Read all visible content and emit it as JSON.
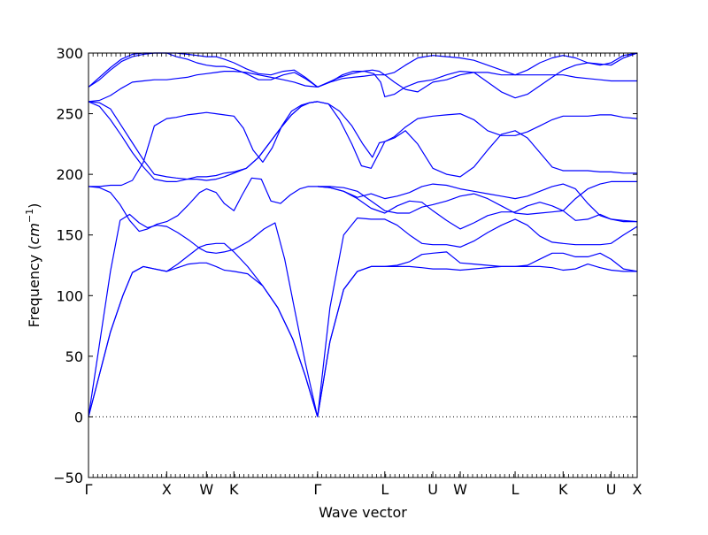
{
  "chart_data": {
    "type": "line",
    "title": "",
    "xlabel": "Wave vector",
    "ylabel_text": "Frequency (",
    "ylabel_unit_base": "cm",
    "ylabel_unit_exp": "−1",
    "ylabel_close": ")",
    "ylim": [
      -50,
      300
    ],
    "yticks": [
      -50,
      0,
      50,
      100,
      150,
      200,
      250,
      300
    ],
    "xlim": [
      0,
      40.0
    ],
    "grid": false,
    "legend": "none",
    "line_color": "#0000ff",
    "zero_line": {
      "y": 0,
      "style": "dotted",
      "color": "#000000"
    },
    "high_symmetry_points": [
      {
        "label": "Γ",
        "x": 0.0
      },
      {
        "label": "X",
        "x": 5.7
      },
      {
        "label": "W",
        "x": 8.6
      },
      {
        "label": "K",
        "x": 10.6
      },
      {
        "label": "Γ",
        "x": 16.7
      },
      {
        "label": "L",
        "x": 21.6
      },
      {
        "label": "U",
        "x": 25.1
      },
      {
        "label": "W",
        "x": 27.1
      },
      {
        "label": "L",
        "x": 31.1
      },
      {
        "label": "K",
        "x": 34.6
      },
      {
        "label": "U",
        "x": 38.1
      },
      {
        "label": "X",
        "x": 40.0
      }
    ],
    "series": [
      {
        "x": [
          0,
          0.8,
          1.6,
          2.5,
          3.2,
          4.0,
          4.8,
          5.7,
          6.5,
          7.3,
          8.1,
          8.6,
          9.3,
          9.9,
          10.6,
          11.6,
          12.7,
          13.8,
          14.9,
          15.8,
          16.7
        ],
        "y": [
          0,
          35,
          70,
          100,
          119,
          124,
          122,
          120,
          123,
          126,
          127,
          127,
          124,
          121,
          120,
          118,
          108,
          90,
          64,
          34,
          0
        ]
      },
      {
        "x": [
          0,
          0.8,
          1.6,
          2.5,
          3.2,
          4.0,
          4.8,
          5.7,
          6.5,
          7.3,
          8.1,
          8.6,
          9.3,
          9.9,
          10.6,
          11.6,
          12.7,
          13.8,
          14.9,
          15.8,
          16.7
        ],
        "y": [
          0,
          35,
          70,
          100,
          119,
          124,
          122,
          120,
          126,
          133,
          140,
          142,
          143,
          143,
          136,
          124,
          108,
          90,
          64,
          34,
          0
        ]
      },
      {
        "x": [
          0,
          0.8,
          1.6,
          2.3,
          3.0,
          3.7,
          4.3,
          5.0,
          5.7,
          6.5,
          7.3,
          8.1,
          8.6,
          9.3,
          9.9,
          10.6,
          11.7,
          12.8,
          13.6,
          14.3,
          15.0,
          15.8,
          16.7
        ],
        "y": [
          0,
          60,
          120,
          162,
          167,
          160,
          156,
          158,
          157,
          152,
          146,
          139,
          136,
          135,
          136,
          138,
          145,
          155,
          160,
          130,
          90,
          45,
          0
        ]
      },
      {
        "x": [
          0,
          0.8,
          1.6,
          2.3,
          3.0,
          3.7,
          4.3,
          5.0,
          5.7,
          6.5,
          7.3,
          8.1,
          8.6,
          9.3,
          9.9,
          10.6,
          11.2,
          11.9,
          12.6,
          13.3,
          14.0,
          14.7,
          15.4,
          16.0,
          16.7
        ],
        "y": [
          190,
          189,
          185,
          175,
          162,
          153,
          155,
          159,
          161,
          166,
          175,
          185,
          188,
          185,
          176,
          170,
          183,
          197,
          196,
          178,
          176,
          183,
          188,
          190,
          190
        ]
      },
      {
        "x": [
          0,
          0.8,
          1.6,
          2.4,
          3.2,
          4.0,
          4.8,
          5.7,
          6.4,
          7.2,
          7.9,
          8.6,
          9.3,
          9.9,
          10.6,
          11.3,
          12.0,
          12.7,
          13.4,
          14.1,
          14.8,
          15.5,
          16.1,
          16.7
        ],
        "y": [
          190,
          190,
          191,
          191,
          195,
          210,
          240,
          246,
          247,
          249,
          250,
          251,
          250,
          249,
          248,
          238,
          220,
          210,
          222,
          240,
          252,
          257,
          259,
          260
        ]
      },
      {
        "x": [
          0,
          0.8,
          1.6,
          2.4,
          3.2,
          4.0,
          4.8,
          5.7,
          6.4,
          7.2,
          7.9,
          8.6,
          9.3,
          9.9,
          10.6,
          11.5,
          12.4,
          13.2,
          14.0,
          14.8,
          15.5,
          16.1,
          16.7
        ],
        "y": [
          260,
          259,
          254,
          240,
          226,
          212,
          200,
          198,
          197,
          196,
          196,
          195,
          196,
          198,
          201,
          205,
          214,
          226,
          238,
          249,
          256,
          259,
          260
        ]
      },
      {
        "x": [
          0,
          0.8,
          1.6,
          2.4,
          3.2,
          4.0,
          4.8,
          5.7,
          6.4,
          7.2,
          7.9,
          8.6,
          9.3,
          9.9,
          10.6,
          11.5,
          12.4,
          13.2,
          14.0,
          14.8,
          15.5,
          16.1,
          16.7
        ],
        "y": [
          260,
          256,
          245,
          232,
          218,
          206,
          196,
          194,
          194,
          196,
          198,
          198,
          199,
          201,
          202,
          205,
          214,
          226,
          238,
          249,
          256,
          259,
          260
        ]
      },
      {
        "x": [
          0,
          0.8,
          1.6,
          2.4,
          3.2,
          4.0,
          4.8,
          5.7,
          6.4,
          7.2,
          7.9,
          8.6,
          9.3,
          9.9,
          10.6,
          11.5,
          12.4,
          13.3,
          14.2,
          15.0,
          15.8,
          16.7
        ],
        "y": [
          260,
          261,
          265,
          271,
          276,
          277,
          278,
          278,
          279,
          280,
          282,
          283,
          284,
          285,
          285,
          284,
          282,
          280,
          278,
          276,
          273,
          272
        ]
      },
      {
        "x": [
          0,
          0.8,
          1.6,
          2.4,
          3.2,
          4.0,
          4.8,
          5.7,
          6.4,
          7.2,
          7.9,
          8.6,
          9.3,
          9.9,
          10.6,
          11.5,
          12.4,
          13.3,
          14.2,
          15.0,
          15.8,
          16.7
        ],
        "y": [
          272,
          278,
          286,
          293,
          297,
          299,
          300,
          300,
          297,
          295,
          292,
          290,
          289,
          289,
          287,
          283,
          278,
          278,
          282,
          284,
          279,
          272
        ]
      },
      {
        "x": [
          0,
          0.8,
          1.6,
          2.4,
          3.2,
          4.0,
          4.8,
          5.7,
          6.4,
          7.2,
          7.9,
          8.6,
          9.3,
          9.9,
          10.6,
          11.5,
          12.4,
          13.3,
          14.2,
          15.0,
          15.8,
          16.7
        ],
        "y": [
          272,
          280,
          288,
          295,
          299,
          300,
          300,
          300,
          300,
          299,
          298,
          297,
          297,
          295,
          292,
          287,
          283,
          282,
          285,
          286,
          280,
          272
        ]
      },
      {
        "x": [
          16.7,
          17.6,
          18.6,
          19.6,
          20.6,
          21.6,
          22.5,
          23.4,
          24.3,
          25.1,
          26.1,
          27.1,
          28.1,
          29.1,
          30.1,
          31.1,
          32.0,
          32.9,
          33.8,
          34.6,
          35.5,
          36.4,
          37.3,
          38.1,
          39.0,
          40.0
        ],
        "y": [
          0,
          62,
          105,
          120,
          124,
          124,
          124,
          124,
          123,
          122,
          122,
          121,
          122,
          123,
          124,
          124,
          124,
          124,
          123,
          121,
          122,
          126,
          123,
          121,
          120,
          120
        ]
      },
      {
        "x": [
          16.7,
          17.6,
          18.6,
          19.6,
          20.6,
          21.6,
          22.5,
          23.4,
          24.3,
          25.1,
          26.1,
          27.1,
          28.1,
          29.1,
          30.1,
          31.1,
          32.0,
          32.9,
          33.8,
          34.6,
          35.5,
          36.4,
          37.3,
          38.1,
          39.0,
          40.0
        ],
        "y": [
          0,
          62,
          105,
          120,
          124,
          124,
          125,
          128,
          134,
          135,
          136,
          127,
          126,
          125,
          124,
          124,
          125,
          130,
          135,
          135,
          132,
          132,
          135,
          130,
          122,
          120
        ]
      },
      {
        "x": [
          16.7,
          17.6,
          18.6,
          19.6,
          20.6,
          21.6,
          22.5,
          23.4,
          24.3,
          25.1,
          26.1,
          27.1,
          28.1,
          29.1,
          30.1,
          31.1,
          32.0,
          32.9,
          33.8,
          34.6,
          35.5,
          36.4,
          37.3,
          38.1,
          39.0,
          40.0
        ],
        "y": [
          0,
          90,
          150,
          164,
          163,
          163,
          158,
          150,
          143,
          142,
          142,
          140,
          145,
          152,
          158,
          163,
          158,
          149,
          144,
          143,
          142,
          142,
          142,
          143,
          150,
          157
        ]
      },
      {
        "x": [
          16.7,
          17.6,
          18.6,
          19.6,
          20.6,
          21.6,
          22.5,
          23.4,
          24.3,
          25.1,
          26.1,
          27.1,
          28.1,
          29.1,
          30.1,
          31.1,
          32.0,
          32.9,
          33.8,
          34.6,
          35.5,
          36.4,
          37.3,
          38.1,
          39.0,
          40.0
        ],
        "y": [
          190,
          189,
          186,
          180,
          172,
          168,
          174,
          178,
          177,
          170,
          162,
          155,
          160,
          166,
          169,
          169,
          174,
          177,
          174,
          170,
          162,
          163,
          167,
          163,
          162,
          161
        ]
      },
      {
        "x": [
          16.7,
          17.6,
          18.6,
          19.6,
          20.6,
          21.6,
          22.5,
          23.4,
          24.3,
          25.1,
          26.1,
          27.1,
          28.1,
          29.1,
          30.1,
          31.1,
          32.0,
          32.9,
          33.8,
          34.6,
          35.5,
          36.4,
          37.3,
          38.1,
          39.0,
          40.0
        ],
        "y": [
          190,
          190,
          189,
          186,
          178,
          170,
          168,
          168,
          173,
          175,
          178,
          182,
          184,
          180,
          174,
          168,
          167,
          168,
          169,
          170,
          180,
          188,
          192,
          194,
          194,
          194
        ]
      },
      {
        "x": [
          16.7,
          17.6,
          18.6,
          19.6,
          20.6,
          21.6,
          22.5,
          23.4,
          24.3,
          25.1,
          26.1,
          27.1,
          28.1,
          29.1,
          30.1,
          31.1,
          32.0,
          32.9,
          33.8,
          34.6,
          35.5,
          36.4,
          37.3,
          38.1,
          39.0,
          40.0
        ],
        "y": [
          190,
          189,
          186,
          181,
          184,
          180,
          182,
          185,
          190,
          192,
          191,
          188,
          186,
          184,
          182,
          180,
          182,
          186,
          190,
          192,
          188,
          176,
          166,
          163,
          161,
          161
        ]
      },
      {
        "x": [
          16.7,
          17.5,
          18.3,
          19.2,
          19.9,
          20.6,
          21.2,
          21.6,
          22.3,
          23.1,
          24.0,
          25.1,
          26.1,
          27.1,
          28.1,
          29.1,
          30.1,
          31.1,
          32.0,
          32.9,
          33.8,
          34.6,
          35.5,
          36.4,
          37.3,
          38.1,
          39.0,
          40.0
        ],
        "y": [
          260,
          258,
          245,
          225,
          207,
          205,
          218,
          227,
          230,
          236,
          225,
          205,
          200,
          198,
          206,
          220,
          233,
          236,
          230,
          218,
          206,
          203,
          203,
          203,
          202,
          202,
          201,
          201
        ]
      },
      {
        "x": [
          16.7,
          17.5,
          18.3,
          19.2,
          20.0,
          20.7,
          21.2,
          21.6,
          22.3,
          23.1,
          24.0,
          25.1,
          26.1,
          27.1,
          28.1,
          29.1,
          30.1,
          31.1,
          32.0,
          32.9,
          33.8,
          34.6,
          35.5,
          36.4,
          37.3,
          38.1,
          39.0,
          40.0
        ],
        "y": [
          260,
          258,
          252,
          240,
          225,
          214,
          226,
          227,
          231,
          239,
          246,
          248,
          249,
          250,
          245,
          236,
          232,
          232,
          235,
          240,
          245,
          248,
          248,
          248,
          249,
          249,
          247,
          246
        ]
      },
      {
        "x": [
          16.7,
          17.5,
          18.3,
          19.2,
          20.0,
          20.7,
          21.2,
          21.6,
          22.3,
          23.1,
          24.0,
          25.1,
          26.1,
          27.1,
          28.1,
          29.1,
          30.1,
          31.1,
          32.0,
          32.9,
          33.8,
          34.6,
          35.5,
          36.4,
          37.3,
          38.1,
          39.0,
          40.0
        ],
        "y": [
          272,
          276,
          280,
          283,
          285,
          286,
          285,
          282,
          276,
          270,
          268,
          276,
          278,
          282,
          284,
          284,
          282,
          282,
          282,
          282,
          282,
          282,
          280,
          279,
          278,
          277,
          277,
          277
        ]
      },
      {
        "x": [
          16.7,
          17.6,
          18.5,
          19.3,
          20.1,
          20.8,
          21.3,
          21.6,
          22.3,
          23.1,
          24.0,
          25.1,
          26.1,
          27.1,
          28.1,
          29.1,
          30.1,
          31.1,
          32.0,
          32.9,
          33.8,
          34.6,
          35.5,
          36.4,
          37.3,
          38.1,
          39.0,
          40.0
        ],
        "y": [
          272,
          276,
          282,
          285,
          285,
          283,
          276,
          264,
          266,
          272,
          276,
          278,
          282,
          285,
          284,
          276,
          268,
          263,
          266,
          273,
          280,
          286,
          290,
          292,
          291,
          290,
          296,
          300
        ]
      },
      {
        "x": [
          16.7,
          17.6,
          18.5,
          19.3,
          20.1,
          20.8,
          21.3,
          21.6,
          22.3,
          23.1,
          24.0,
          25.1,
          26.1,
          27.1,
          28.1,
          29.1,
          30.1,
          31.1,
          32.0,
          32.9,
          33.8,
          34.6,
          35.5,
          36.4,
          37.3,
          38.1,
          39.0,
          40.0
        ],
        "y": [
          272,
          276,
          279,
          280,
          281,
          282,
          282,
          282,
          284,
          290,
          296,
          298,
          297,
          296,
          294,
          290,
          286,
          282,
          286,
          292,
          296,
          298,
          296,
          292,
          290,
          292,
          298,
          300
        ]
      }
    ]
  }
}
